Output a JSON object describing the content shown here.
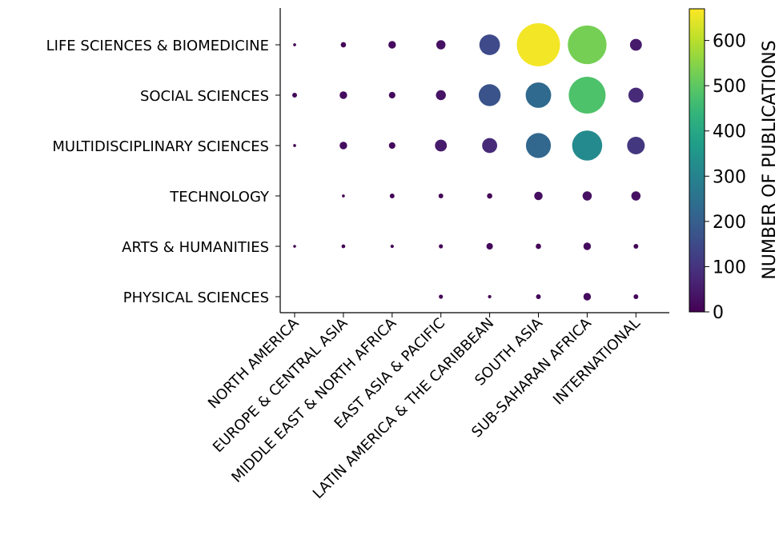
{
  "chart_data": {
    "type": "scatter",
    "subtype": "bubble-matrix",
    "title": "",
    "xlabel": "",
    "ylabel": "",
    "x_categories": [
      "NORTH AMERICA",
      "EUROPE & CENTRAL ASIA",
      "MIDDLE EAST & NORTH AFRICA",
      "EAST ASIA & PACIFIC",
      "LATIN AMERICA & THE CARIBBEAN",
      "SOUTH ASIA",
      "SUB-SAHARAN AFRICA",
      "INTERNATIONAL"
    ],
    "y_categories": [
      "LIFE SCIENCES & BIOMEDICINE",
      "SOCIAL SCIENCES",
      "MULTIDISCIPLINARY SCIENCES",
      "TECHNOLOGY",
      "ARTS & HUMANITIES",
      "PHYSICAL SCIENCES"
    ],
    "values": [
      [
        3,
        10,
        20,
        30,
        150,
        660,
        530,
        50
      ],
      [
        8,
        20,
        15,
        35,
        170,
        230,
        480,
        80
      ],
      [
        3,
        20,
        15,
        50,
        80,
        220,
        320,
        110
      ],
      [
        null,
        3,
        8,
        8,
        10,
        25,
        30,
        30
      ],
      [
        2,
        5,
        4,
        6,
        15,
        10,
        20,
        8
      ],
      [
        null,
        null,
        null,
        6,
        4,
        8,
        20,
        8
      ]
    ],
    "colorbar": {
      "label": "NUMBER OF PUBLICATIONS",
      "range": [
        0,
        670
      ],
      "ticks": [
        0,
        100,
        200,
        300,
        400,
        500,
        600
      ],
      "colormap": "viridis"
    },
    "grid": false
  }
}
